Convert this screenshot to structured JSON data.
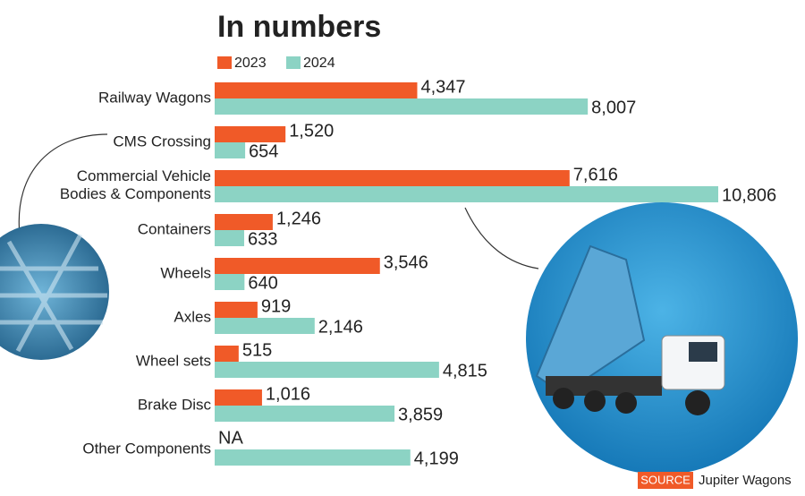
{
  "chart_data": {
    "type": "bar",
    "orientation": "horizontal",
    "title": "In numbers",
    "categories": [
      "Railway Wagons",
      "CMS Crossing",
      "Commercial Vehicle\nBodies & Components",
      "Containers",
      "Wheels",
      "Axles",
      "Wheel sets",
      "Brake Disc",
      "Other Components"
    ],
    "series": [
      {
        "name": "2023",
        "color": "#f05a28",
        "values": [
          4347,
          1520,
          7616,
          1246,
          3546,
          919,
          515,
          1016,
          null
        ],
        "value_labels": [
          "4,347",
          "1,520",
          "7,616",
          "1,246",
          "3,546",
          "919",
          "515",
          "1,016",
          "NA"
        ]
      },
      {
        "name": "2024",
        "color": "#8cd3c4",
        "values": [
          8007,
          654,
          10806,
          633,
          640,
          2146,
          4815,
          3859,
          4199
        ],
        "value_labels": [
          "8,007",
          "654",
          "10,806",
          "633",
          "640",
          "2,146",
          "4,815",
          "3,859",
          "4,199"
        ]
      }
    ],
    "source_tag": "SOURCE",
    "source": "Jupiter Wagons"
  }
}
